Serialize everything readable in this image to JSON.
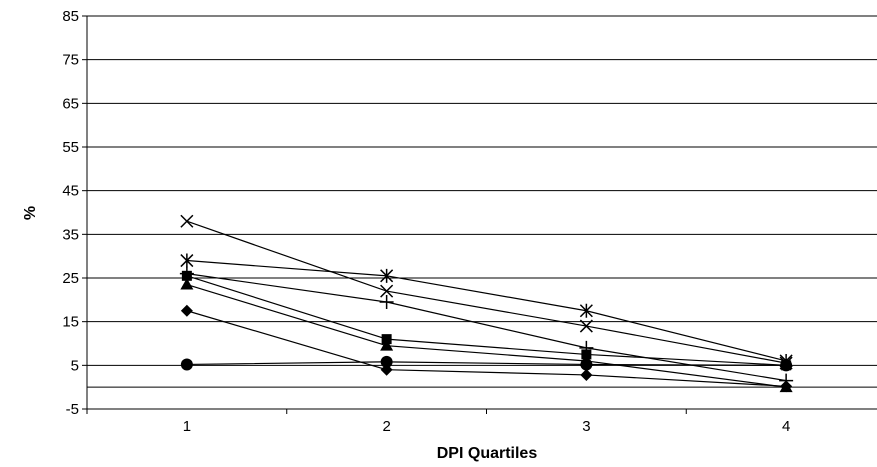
{
  "chart_data": {
    "type": "line",
    "title": "",
    "xlabel": "DPI Quartiles",
    "ylabel": "%",
    "categories": [
      "1",
      "2",
      "3",
      "4"
    ],
    "y_ticks": [
      "85",
      "75",
      "65",
      "55",
      "45",
      "35",
      "25",
      "15",
      "5",
      "-5"
    ],
    "ylim": [
      -5,
      85
    ],
    "grid": "horizontal",
    "series": [
      {
        "marker": "diamond",
        "values": [
          17.5,
          4,
          2.8,
          0.2
        ]
      },
      {
        "marker": "square",
        "values": [
          25.5,
          11,
          7.5,
          5
        ]
      },
      {
        "marker": "triangle",
        "values": [
          23.5,
          9.5,
          6,
          0
        ]
      },
      {
        "marker": "x",
        "values": [
          38,
          22,
          14,
          5.5
        ]
      },
      {
        "marker": "asterisk",
        "values": [
          29,
          25.5,
          17.5,
          6
        ]
      },
      {
        "marker": "circle",
        "values": [
          5.2,
          5.8,
          5.2,
          5
        ]
      },
      {
        "marker": "plus",
        "values": [
          26,
          19.5,
          9,
          1.5
        ]
      }
    ]
  }
}
